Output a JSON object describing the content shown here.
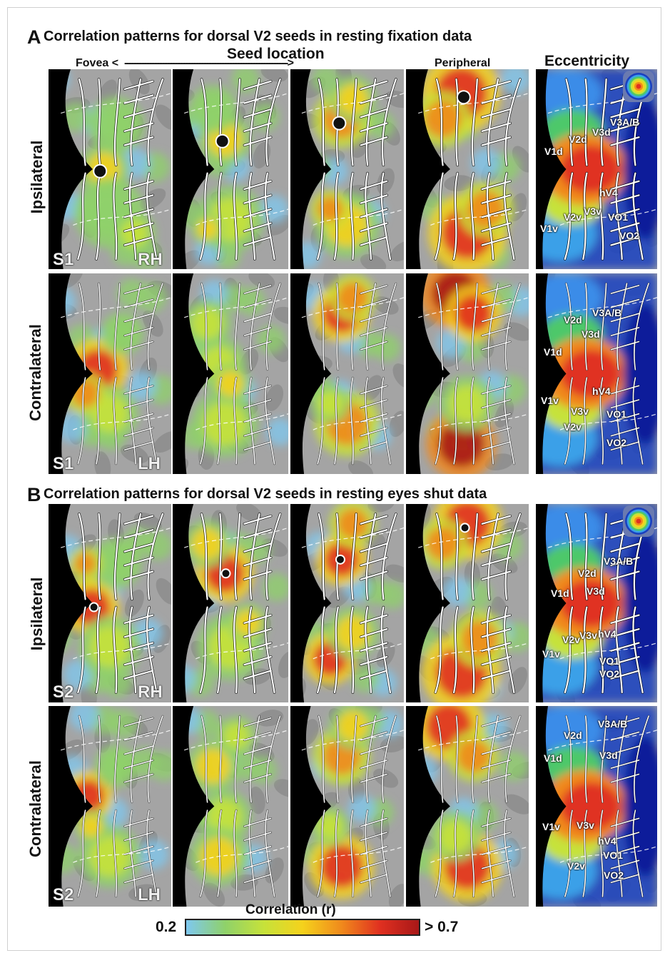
{
  "panel_a": {
    "letter": "A",
    "title": "Correlation patterns for dorsal V2 seeds in resting fixation data"
  },
  "panel_b": {
    "letter": "B",
    "title": "Correlation patterns for dorsal V2 seeds in resting eyes shut data"
  },
  "axis": {
    "seed_location": "Seed location",
    "left": "Fovea <",
    "arrow": "--------------------------------------------------------------->",
    "right": "Peripheral"
  },
  "eccentricity_title": "Eccentricity",
  "row_labels": {
    "ipsilateral": "Ipsilateral",
    "contralateral": "Contralateral"
  },
  "corner_labels": {
    "a_ipsi": [
      "S1",
      "RH"
    ],
    "a_contra": [
      "S1",
      "LH"
    ],
    "b_ipsi": [
      "S2",
      "RH"
    ],
    "b_contra": [
      "S2",
      "LH"
    ]
  },
  "roi_labels": {
    "a_ipsi": [
      "V1d",
      "V2d",
      "V3d",
      "V3A/B",
      "hV4",
      "VO1",
      "VO2",
      "V1v",
      "V2v",
      "V3v"
    ],
    "a_contra": [
      "V2d",
      "V3A/B",
      "V3d",
      "V1d",
      "hV4",
      "V1v",
      "V3v",
      "V2v",
      "VO1",
      "VO2"
    ],
    "b_ipsi": [
      "V2d",
      "V3A/B",
      "V1d",
      "V3d",
      "hV4",
      "V2v",
      "V3v",
      "V1v",
      "VO1",
      "VO2"
    ],
    "b_contra": [
      "V3A/B",
      "V2d",
      "V1d",
      "V3d",
      "V1v",
      "V3v",
      "hV4",
      "VO1",
      "V2v",
      "VO2"
    ]
  },
  "colorbar": {
    "title": "Correlation (r)",
    "min_label": "0.2",
    "max_label": "> 0.7",
    "colors": [
      "#7ec8f0",
      "#8fd16a",
      "#c6e23a",
      "#f5d21c",
      "#f08a1c",
      "#e03020",
      "#a81818"
    ]
  },
  "seed_colors": {
    "dot_fill": "#111111",
    "dot_ring": "#ffffff"
  }
}
